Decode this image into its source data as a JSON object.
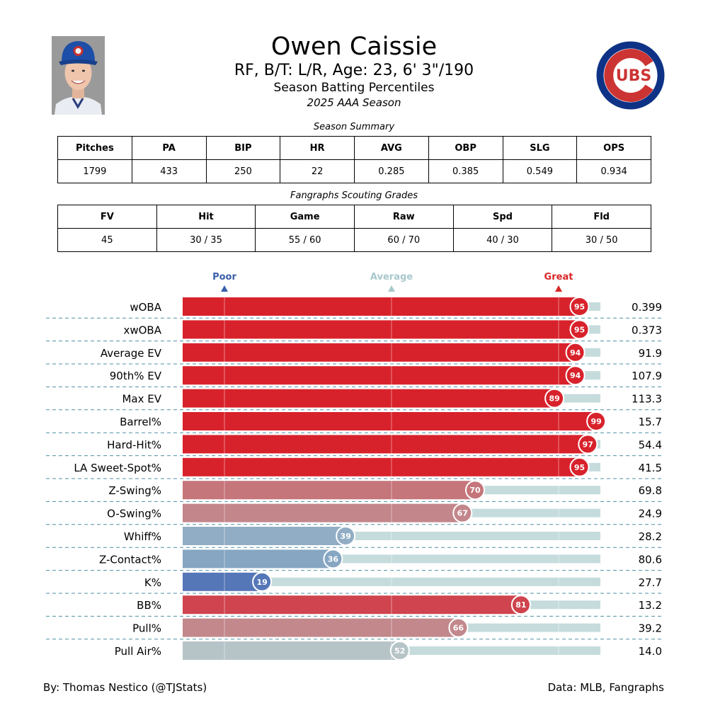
{
  "player": {
    "name": "Owen Caissie",
    "meta": "RF, B/T: L/R, Age: 23, 6' 3\"/190",
    "subtitle": "Season Batting Percentiles",
    "season": "2025 AAA Season",
    "photo_icon": "player-headshot",
    "logo_icon": "cubs-logo",
    "logo_text": "UBS"
  },
  "summary": {
    "title": "Season Summary",
    "headers": [
      "Pitches",
      "PA",
      "BIP",
      "HR",
      "AVG",
      "OBP",
      "SLG",
      "OPS"
    ],
    "values": [
      "1799",
      "433",
      "250",
      "22",
      "0.285",
      "0.385",
      "0.549",
      "0.934"
    ]
  },
  "grades": {
    "title": "Fangraphs Scouting Grades",
    "headers": [
      "FV",
      "Hit",
      "Game",
      "Raw",
      "Spd",
      "Fld"
    ],
    "values": [
      "45",
      "30 / 35",
      "55 / 60",
      "60 / 70",
      "40 / 30",
      "30 / 50"
    ]
  },
  "chart_data": {
    "type": "bar",
    "orientation": "horizontal",
    "xlim": [
      0,
      100
    ],
    "scale_markers": [
      {
        "label": "Poor",
        "at": 10,
        "color": "#3a5fa8"
      },
      {
        "label": "Average",
        "at": 50,
        "color": "#a9c8cc"
      },
      {
        "label": "Great",
        "at": 90,
        "color": "#d62728"
      }
    ],
    "categories": [
      "wOBA",
      "xwOBA",
      "Average EV",
      "90th% EV",
      "Max EV",
      "Barrel%",
      "Hard-Hit%",
      "LA Sweet-Spot%",
      "Z-Swing%",
      "O-Swing%",
      "Whiff%",
      "Z-Contact%",
      "K%",
      "BB%",
      "Pull%",
      "Pull Air%"
    ],
    "percentiles": [
      95,
      95,
      94,
      94,
      89,
      99,
      97,
      95,
      70,
      67,
      39,
      36,
      19,
      81,
      66,
      52
    ],
    "stat_values": [
      "0.399",
      "0.373",
      "91.9",
      "107.9",
      "113.3",
      "15.7",
      "54.4",
      "41.5",
      "69.8",
      "24.9",
      "28.2",
      "80.6",
      "27.7",
      "13.2",
      "39.2",
      "14.0"
    ],
    "bar_colors": [
      "#d8222b",
      "#d8222b",
      "#d8222b",
      "#d8222b",
      "#d8222b",
      "#d8222b",
      "#d8222b",
      "#d8222b",
      "#c5767b",
      "#c2868b",
      "#91adc5",
      "#86a6c2",
      "#5577b7",
      "#cf444e",
      "#c2888c",
      "#b6c4c8"
    ],
    "track_color": "#c6dcdc",
    "grid": true
  },
  "footer": {
    "left": "By: Thomas Nestico (@TJStats)",
    "right": "Data: MLB, Fangraphs"
  }
}
